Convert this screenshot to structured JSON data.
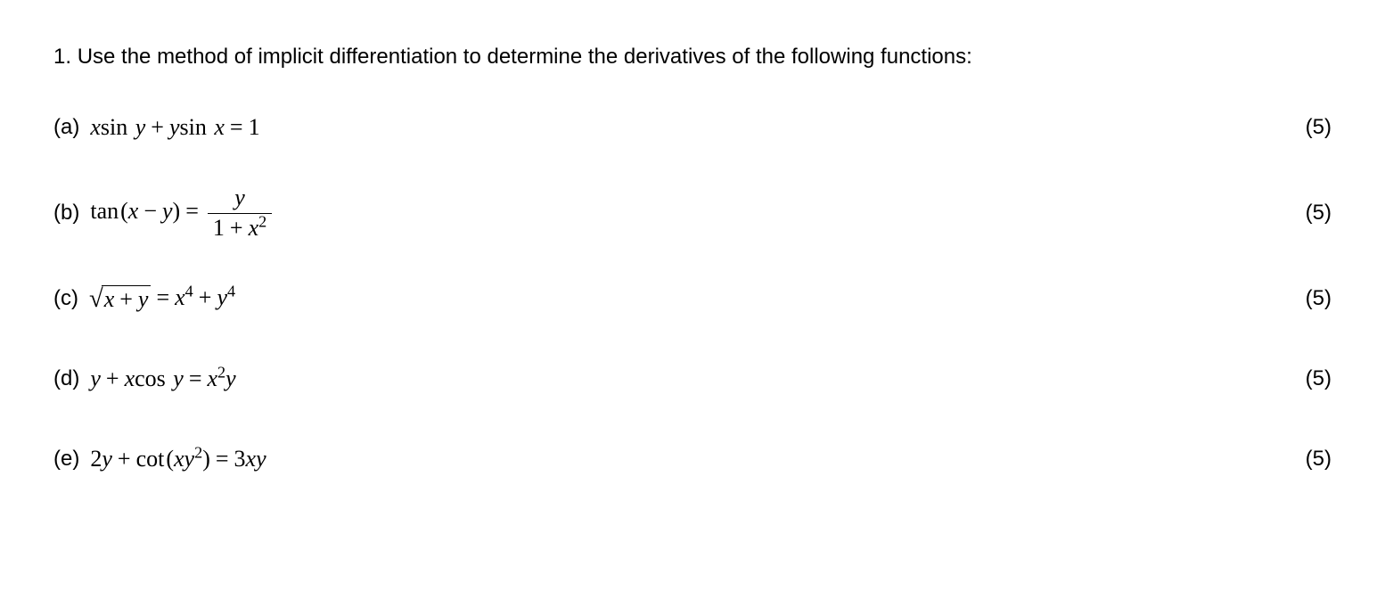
{
  "page": {
    "background_color": "#ffffff",
    "text_color": "#000000",
    "body_font": "Arial, Helvetica, sans-serif",
    "math_font": "Times New Roman, Times, serif",
    "body_fontsize": 24,
    "math_fontsize": 26
  },
  "question": {
    "number": "1.",
    "prompt": "Use the method of implicit differentiation to determine the derivatives of the following functions:"
  },
  "parts": {
    "a": {
      "label": "(a)",
      "marks": "(5)",
      "equation_plain": "x sin y + y sin x = 1",
      "tokens": {
        "x1": "x",
        "sin1": "sin",
        "y1": "y",
        "plus": "+",
        "y2": "y",
        "sin2": "sin",
        "x2": "x",
        "eq": "=",
        "one": "1"
      }
    },
    "b": {
      "label": "(b)",
      "marks": "(5)",
      "equation_plain": "tan(x - y) = y / (1 + x^2)",
      "tokens": {
        "tan": "tan",
        "lp": "(",
        "x": "x",
        "minus": "−",
        "y": "y",
        "rp": ")",
        "eq": "=",
        "num_y": "y",
        "den_1": "1",
        "den_plus": "+",
        "den_x": "x",
        "den_exp": "2"
      }
    },
    "c": {
      "label": "(c)",
      "marks": "(5)",
      "equation_plain": "sqrt(x + y) = x^4 + y^4",
      "tokens": {
        "x1": "x",
        "plus1": "+",
        "y1": "y",
        "eq": "=",
        "x2": "x",
        "exp1": "4",
        "plus2": "+",
        "y2": "y",
        "exp2": "4"
      }
    },
    "d": {
      "label": "(d)",
      "marks": "(5)",
      "equation_plain": "y + x cos y = x^2 y",
      "tokens": {
        "y1": "y",
        "plus": "+",
        "x1": "x",
        "cos": "cos",
        "y2": "y",
        "eq": "=",
        "x2": "x",
        "exp": "2",
        "y3": "y"
      }
    },
    "e": {
      "label": "(e)",
      "marks": "(5)",
      "equation_plain": "2y + cot(xy^2) = 3xy",
      "tokens": {
        "two": "2",
        "y1": "y",
        "plus": "+",
        "cot": "cot",
        "lp": "(",
        "x1": "x",
        "y2": "y",
        "exp": "2",
        "rp": ")",
        "eq": "=",
        "three": "3",
        "x2": "x",
        "y3": "y"
      }
    }
  }
}
